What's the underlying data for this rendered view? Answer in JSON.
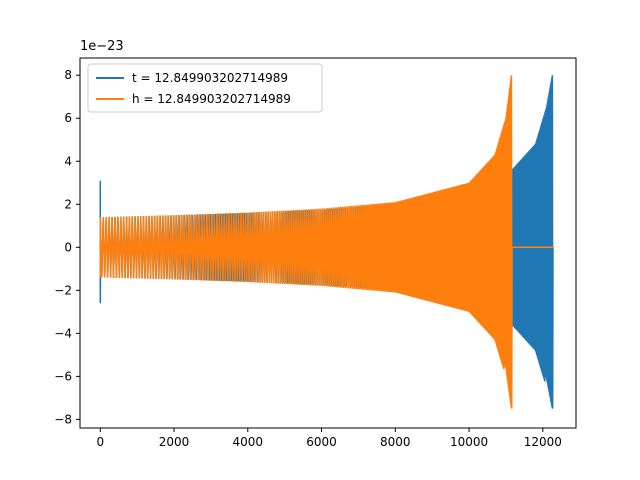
{
  "chart_data": {
    "type": "line",
    "title": "",
    "xlabel": "",
    "ylabel": "",
    "y_scale_label": "1e−23",
    "xlim": [
      -550,
      12900
    ],
    "ylim": [
      -8.4,
      8.8
    ],
    "x_ticks": [
      0,
      2000,
      4000,
      6000,
      8000,
      10000,
      12000
    ],
    "x_tick_labels": [
      "0",
      "2000",
      "4000",
      "6000",
      "8000",
      "10000",
      "12000"
    ],
    "y_ticks": [
      -8,
      -6,
      -4,
      -2,
      0,
      2,
      4,
      6,
      8
    ],
    "y_tick_labels": [
      "−8",
      "−6",
      "−4",
      "−2",
      "0",
      "2",
      "4",
      "6",
      "8"
    ],
    "grid": false,
    "legend": "upper left",
    "series": [
      {
        "name": "t = 12.849903202714989",
        "color": "#1f77b4",
        "waveform": "chirp",
        "x_start": 0,
        "x_merger": 12260,
        "x_end": 12300,
        "initial_spike": [
          -2.6,
          3.1
        ],
        "envelope": [
          [
            0,
            1.4
          ],
          [
            2000,
            1.48
          ],
          [
            4000,
            1.6
          ],
          [
            6000,
            1.75
          ],
          [
            8000,
            2.0
          ],
          [
            10000,
            2.6
          ],
          [
            11000,
            3.3
          ],
          [
            11800,
            4.8
          ],
          [
            12100,
            6.5
          ],
          [
            12260,
            8.0
          ]
        ],
        "envelope_min_at_merger": -7.5
      },
      {
        "name": "h = 12.849903202714989",
        "color": "#ff7f0e",
        "waveform": "chirp",
        "x_start": 0,
        "x_merger": 11150,
        "x_end": 12300,
        "initial_spike": [
          -1.4,
          1.4
        ],
        "envelope": [
          [
            0,
            1.4
          ],
          [
            2000,
            1.5
          ],
          [
            4000,
            1.62
          ],
          [
            6000,
            1.8
          ],
          [
            8000,
            2.1
          ],
          [
            10000,
            3.0
          ],
          [
            10700,
            4.3
          ],
          [
            11000,
            6.0
          ],
          [
            11150,
            8.0
          ]
        ],
        "envelope_min_at_merger": -7.5,
        "flat_after_merger": 0
      }
    ]
  }
}
